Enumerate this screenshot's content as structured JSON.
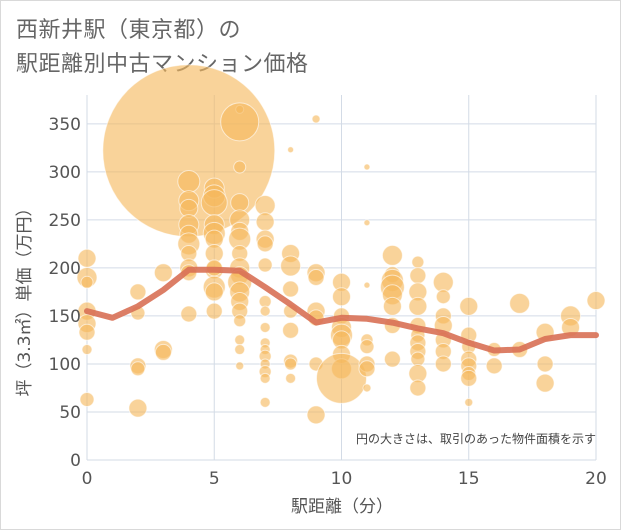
{
  "chart_data": {
    "type": "scatter",
    "title_line1": "西新井駅（東京都）の",
    "title_line2": "駅距離別中古マンション価格",
    "xlabel": "駅距離（分）",
    "ylabel": "坪（3.3㎡）単価（万円）",
    "note": "円の大きさは、取引のあった物件面積を示す",
    "xlim": [
      0,
      20
    ],
    "ylim": [
      0,
      380
    ],
    "x_ticks": [
      0,
      5,
      10,
      15,
      20
    ],
    "y_ticks": [
      0,
      50,
      100,
      150,
      200,
      250,
      300,
      350
    ],
    "grid": true,
    "bubble_color": "#f5b85c",
    "line_color": "#d87055",
    "trend_line": {
      "x": [
        0,
        1,
        2,
        3,
        4,
        5,
        6,
        7,
        8,
        9,
        10,
        11,
        12,
        13,
        14,
        15,
        16,
        17,
        18,
        19,
        20
      ],
      "y": [
        155,
        148,
        160,
        177,
        198,
        198,
        197,
        180,
        162,
        143,
        148,
        147,
        143,
        137,
        132,
        122,
        114,
        115,
        126,
        130,
        130
      ]
    },
    "points": [
      {
        "x": 0,
        "y": 210,
        "s": 9
      },
      {
        "x": 0,
        "y": 190,
        "s": 10
      },
      {
        "x": 0,
        "y": 155,
        "s": 9
      },
      {
        "x": 0,
        "y": 142,
        "s": 9
      },
      {
        "x": 0,
        "y": 133,
        "s": 8
      },
      {
        "x": 0,
        "y": 115,
        "s": 5
      },
      {
        "x": 0,
        "y": 63,
        "s": 7
      },
      {
        "x": 0,
        "y": 185,
        "s": 6
      },
      {
        "x": 2,
        "y": 175,
        "s": 8
      },
      {
        "x": 2,
        "y": 153,
        "s": 7
      },
      {
        "x": 2,
        "y": 98,
        "s": 8
      },
      {
        "x": 2,
        "y": 95,
        "s": 7
      },
      {
        "x": 2,
        "y": 54,
        "s": 9
      },
      {
        "x": 3,
        "y": 195,
        "s": 9
      },
      {
        "x": 3,
        "y": 115,
        "s": 9
      },
      {
        "x": 3,
        "y": 112,
        "s": 8
      },
      {
        "x": 4,
        "y": 322,
        "s": 86
      },
      {
        "x": 4,
        "y": 290,
        "s": 11
      },
      {
        "x": 4,
        "y": 270,
        "s": 10
      },
      {
        "x": 4,
        "y": 262,
        "s": 9
      },
      {
        "x": 4,
        "y": 245,
        "s": 10
      },
      {
        "x": 4,
        "y": 235,
        "s": 9
      },
      {
        "x": 4,
        "y": 225,
        "s": 11
      },
      {
        "x": 4,
        "y": 215,
        "s": 8
      },
      {
        "x": 4,
        "y": 200,
        "s": 9
      },
      {
        "x": 4,
        "y": 195,
        "s": 8
      },
      {
        "x": 4,
        "y": 152,
        "s": 8
      },
      {
        "x": 5,
        "y": 283,
        "s": 10
      },
      {
        "x": 5,
        "y": 275,
        "s": 11
      },
      {
        "x": 5,
        "y": 268,
        "s": 13
      },
      {
        "x": 5,
        "y": 245,
        "s": 10
      },
      {
        "x": 5,
        "y": 236,
        "s": 11
      },
      {
        "x": 5,
        "y": 230,
        "s": 9
      },
      {
        "x": 5,
        "y": 215,
        "s": 9
      },
      {
        "x": 5,
        "y": 198,
        "s": 9
      },
      {
        "x": 5,
        "y": 180,
        "s": 11
      },
      {
        "x": 5,
        "y": 175,
        "s": 9
      },
      {
        "x": 5,
        "y": 155,
        "s": 8
      },
      {
        "x": 5,
        "y": 200,
        "s": 8
      },
      {
        "x": 6,
        "y": 365,
        "s": 4
      },
      {
        "x": 6,
        "y": 352,
        "s": 19
      },
      {
        "x": 6,
        "y": 305,
        "s": 6
      },
      {
        "x": 6,
        "y": 268,
        "s": 9
      },
      {
        "x": 6,
        "y": 250,
        "s": 10
      },
      {
        "x": 6,
        "y": 238,
        "s": 9
      },
      {
        "x": 6,
        "y": 230,
        "s": 11
      },
      {
        "x": 6,
        "y": 215,
        "s": 8
      },
      {
        "x": 6,
        "y": 200,
        "s": 10
      },
      {
        "x": 6,
        "y": 192,
        "s": 9
      },
      {
        "x": 6,
        "y": 185,
        "s": 12
      },
      {
        "x": 6,
        "y": 175,
        "s": 10
      },
      {
        "x": 6,
        "y": 165,
        "s": 9
      },
      {
        "x": 6,
        "y": 155,
        "s": 8
      },
      {
        "x": 6,
        "y": 145,
        "s": 6
      },
      {
        "x": 6,
        "y": 125,
        "s": 5
      },
      {
        "x": 6,
        "y": 115,
        "s": 5
      },
      {
        "x": 6,
        "y": 98,
        "s": 4
      },
      {
        "x": 7,
        "y": 265,
        "s": 10
      },
      {
        "x": 7,
        "y": 248,
        "s": 9
      },
      {
        "x": 7,
        "y": 230,
        "s": 9
      },
      {
        "x": 7,
        "y": 225,
        "s": 8
      },
      {
        "x": 7,
        "y": 203,
        "s": 7
      },
      {
        "x": 7,
        "y": 165,
        "s": 6
      },
      {
        "x": 7,
        "y": 155,
        "s": 5
      },
      {
        "x": 7,
        "y": 138,
        "s": 5
      },
      {
        "x": 7,
        "y": 122,
        "s": 5
      },
      {
        "x": 7,
        "y": 115,
        "s": 5
      },
      {
        "x": 7,
        "y": 108,
        "s": 6
      },
      {
        "x": 7,
        "y": 100,
        "s": 5
      },
      {
        "x": 7,
        "y": 92,
        "s": 6
      },
      {
        "x": 7,
        "y": 85,
        "s": 5
      },
      {
        "x": 7,
        "y": 60,
        "s": 5
      },
      {
        "x": 8,
        "y": 323,
        "s": 3
      },
      {
        "x": 8,
        "y": 215,
        "s": 9
      },
      {
        "x": 8,
        "y": 202,
        "s": 10
      },
      {
        "x": 8,
        "y": 178,
        "s": 8
      },
      {
        "x": 8,
        "y": 155,
        "s": 7
      },
      {
        "x": 8,
        "y": 135,
        "s": 8
      },
      {
        "x": 8,
        "y": 103,
        "s": 7
      },
      {
        "x": 8,
        "y": 100,
        "s": 6
      },
      {
        "x": 8,
        "y": 85,
        "s": 5
      },
      {
        "x": 9,
        "y": 355,
        "s": 4
      },
      {
        "x": 9,
        "y": 195,
        "s": 9
      },
      {
        "x": 9,
        "y": 190,
        "s": 8
      },
      {
        "x": 9,
        "y": 155,
        "s": 9
      },
      {
        "x": 9,
        "y": 148,
        "s": 8
      },
      {
        "x": 9,
        "y": 100,
        "s": 7
      },
      {
        "x": 9,
        "y": 47,
        "s": 9
      },
      {
        "x": 10,
        "y": 185,
        "s": 9
      },
      {
        "x": 10,
        "y": 170,
        "s": 9
      },
      {
        "x": 10,
        "y": 150,
        "s": 8
      },
      {
        "x": 10,
        "y": 138,
        "s": 10
      },
      {
        "x": 10,
        "y": 130,
        "s": 11
      },
      {
        "x": 10,
        "y": 125,
        "s": 9
      },
      {
        "x": 10,
        "y": 110,
        "s": 9
      },
      {
        "x": 10,
        "y": 95,
        "s": 10
      },
      {
        "x": 10,
        "y": 85,
        "s": 25
      },
      {
        "x": 11,
        "y": 305,
        "s": 3
      },
      {
        "x": 11,
        "y": 247,
        "s": 3
      },
      {
        "x": 11,
        "y": 182,
        "s": 3
      },
      {
        "x": 11,
        "y": 125,
        "s": 6
      },
      {
        "x": 11,
        "y": 118,
        "s": 7
      },
      {
        "x": 11,
        "y": 100,
        "s": 8
      },
      {
        "x": 11,
        "y": 95,
        "s": 8
      },
      {
        "x": 11,
        "y": 75,
        "s": 4
      },
      {
        "x": 12,
        "y": 213,
        "s": 10
      },
      {
        "x": 12,
        "y": 193,
        "s": 8
      },
      {
        "x": 12,
        "y": 187,
        "s": 11
      },
      {
        "x": 12,
        "y": 180,
        "s": 12
      },
      {
        "x": 12,
        "y": 172,
        "s": 10
      },
      {
        "x": 12,
        "y": 160,
        "s": 9
      },
      {
        "x": 12,
        "y": 140,
        "s": 8
      },
      {
        "x": 12,
        "y": 105,
        "s": 8
      },
      {
        "x": 13,
        "y": 206,
        "s": 6
      },
      {
        "x": 13,
        "y": 192,
        "s": 8
      },
      {
        "x": 13,
        "y": 175,
        "s": 9
      },
      {
        "x": 13,
        "y": 160,
        "s": 9
      },
      {
        "x": 13,
        "y": 140,
        "s": 8
      },
      {
        "x": 13,
        "y": 130,
        "s": 7
      },
      {
        "x": 13,
        "y": 122,
        "s": 8
      },
      {
        "x": 13,
        "y": 113,
        "s": 8
      },
      {
        "x": 13,
        "y": 105,
        "s": 7
      },
      {
        "x": 13,
        "y": 90,
        "s": 9
      },
      {
        "x": 13,
        "y": 75,
        "s": 8
      },
      {
        "x": 14,
        "y": 185,
        "s": 10
      },
      {
        "x": 14,
        "y": 170,
        "s": 7
      },
      {
        "x": 14,
        "y": 150,
        "s": 8
      },
      {
        "x": 14,
        "y": 140,
        "s": 9
      },
      {
        "x": 14,
        "y": 125,
        "s": 8
      },
      {
        "x": 14,
        "y": 113,
        "s": 8
      },
      {
        "x": 14,
        "y": 100,
        "s": 8
      },
      {
        "x": 15,
        "y": 160,
        "s": 9
      },
      {
        "x": 15,
        "y": 130,
        "s": 8
      },
      {
        "x": 15,
        "y": 118,
        "s": 7
      },
      {
        "x": 15,
        "y": 105,
        "s": 8
      },
      {
        "x": 15,
        "y": 98,
        "s": 8
      },
      {
        "x": 15,
        "y": 90,
        "s": 7
      },
      {
        "x": 15,
        "y": 85,
        "s": 8
      },
      {
        "x": 15,
        "y": 60,
        "s": 4
      },
      {
        "x": 16,
        "y": 115,
        "s": 7
      },
      {
        "x": 16,
        "y": 98,
        "s": 8
      },
      {
        "x": 17,
        "y": 163,
        "s": 10
      },
      {
        "x": 17,
        "y": 115,
        "s": 8
      },
      {
        "x": 18,
        "y": 133,
        "s": 9
      },
      {
        "x": 18,
        "y": 100,
        "s": 8
      },
      {
        "x": 18,
        "y": 80,
        "s": 9
      },
      {
        "x": 19,
        "y": 150,
        "s": 10
      },
      {
        "x": 19,
        "y": 138,
        "s": 9
      },
      {
        "x": 20,
        "y": 166,
        "s": 9
      }
    ]
  }
}
